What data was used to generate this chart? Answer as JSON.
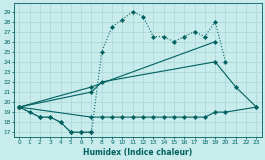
{
  "xlabel": "Humidex (Indice chaleur)",
  "background_color": "#c8ecec",
  "grid_color": "#b0d8d8",
  "line_color": "#006060",
  "xlim": [
    -0.5,
    23.5
  ],
  "ylim": [
    16.5,
    29.8
  ],
  "xticks": [
    0,
    1,
    2,
    3,
    4,
    5,
    6,
    7,
    8,
    9,
    10,
    11,
    12,
    13,
    14,
    15,
    16,
    17,
    18,
    19,
    20,
    21,
    22,
    23
  ],
  "yticks": [
    17,
    18,
    19,
    20,
    21,
    22,
    23,
    24,
    25,
    26,
    27,
    28,
    29
  ],
  "line1_x": [
    0,
    1,
    2,
    3,
    4,
    5,
    6,
    7
  ],
  "line1_y": [
    19.5,
    19.0,
    18.5,
    18.5,
    18.0,
    17.0,
    17.0,
    17.0
  ],
  "line2_x": [
    0,
    7,
    8,
    9,
    10,
    11,
    12,
    13,
    14,
    15,
    16,
    17,
    18,
    19,
    20,
    23
  ],
  "line2_y": [
    19.5,
    18.5,
    18.5,
    18.5,
    18.5,
    18.5,
    18.5,
    18.5,
    18.5,
    18.5,
    18.5,
    18.5,
    18.5,
    19.0,
    19.0,
    19.5
  ],
  "line3_x": [
    0,
    7,
    8,
    19,
    21,
    23
  ],
  "line3_y": [
    19.5,
    21.0,
    22.0,
    24.0,
    21.5,
    19.5
  ],
  "line4_x": [
    0,
    7,
    19
  ],
  "line4_y": [
    19.5,
    21.5,
    26.0
  ],
  "line5_x": [
    0,
    2,
    3,
    4,
    5,
    6,
    7,
    8,
    9,
    10,
    11,
    12,
    13,
    14,
    15,
    16,
    17,
    18,
    19,
    20
  ],
  "line5_y": [
    19.5,
    18.5,
    18.5,
    18.0,
    17.0,
    17.0,
    17.0,
    25.0,
    27.5,
    28.2,
    29.0,
    28.5,
    26.5,
    26.5,
    26.0,
    26.5,
    27.0,
    26.5,
    28.0,
    24.0
  ]
}
